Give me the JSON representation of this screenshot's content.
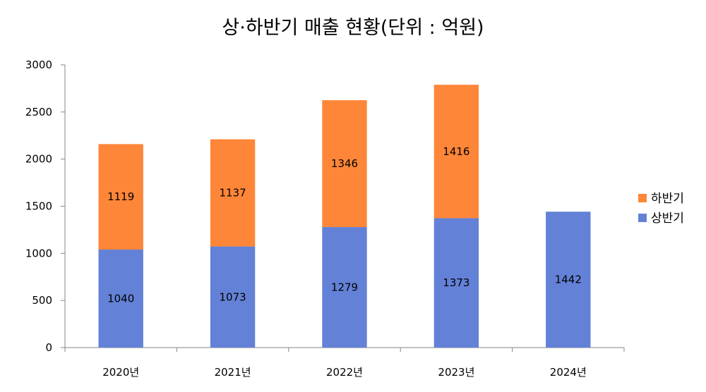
{
  "chart_data": {
    "type": "bar",
    "stacked": true,
    "title": "상·하반기 매출 현황(단위 : 억원)",
    "categories": [
      "2020년",
      "2021년",
      "2022년",
      "2023년",
      "2024년"
    ],
    "series": [
      {
        "name": "상반기",
        "values": [
          1040,
          1073,
          1279,
          1373,
          1442
        ],
        "color": "#6381d6"
      },
      {
        "name": "하반기",
        "values": [
          1119,
          1137,
          1346,
          1416,
          null
        ],
        "color": "#fe8638"
      }
    ],
    "legend_order": [
      "하반기",
      "상반기"
    ],
    "legend_position": "right",
    "ylim": [
      0,
      3000
    ],
    "yticks": [
      0,
      500,
      1000,
      1500,
      2000,
      2500,
      3000
    ],
    "grid": false,
    "data_labels": true
  }
}
